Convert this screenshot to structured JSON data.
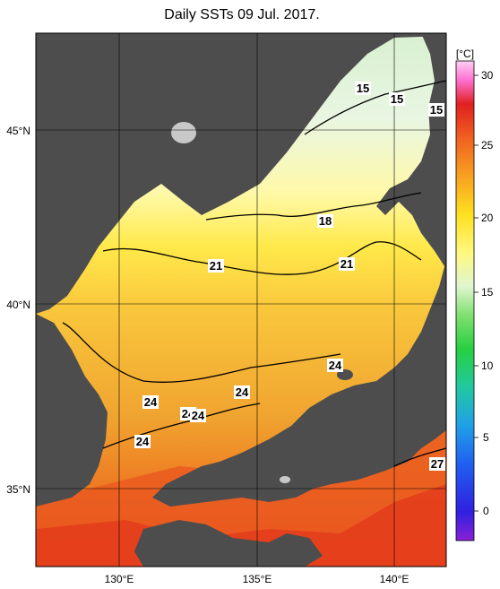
{
  "title": "Daily SSTs 09 Jul. 2017.",
  "colorbar": {
    "unit": "[°C]",
    "ticks": [
      "30",
      "25",
      "20",
      "15",
      "10",
      "5",
      "0"
    ]
  },
  "axes": {
    "lat_labels": [
      "45°N",
      "40°N",
      "35°N"
    ],
    "lon_labels": [
      "130°E",
      "135°E",
      "140°E"
    ]
  },
  "contour_labels": [
    "15",
    "15",
    "15",
    "18",
    "21",
    "21",
    "24",
    "24",
    "24",
    "24",
    "24",
    "24",
    "27"
  ],
  "colors": {
    "land": "#4d4d4d",
    "cold": "#e8f5e6",
    "mild": "#ffff66",
    "warm": "#f5b841",
    "hot": "#e6301e"
  }
}
